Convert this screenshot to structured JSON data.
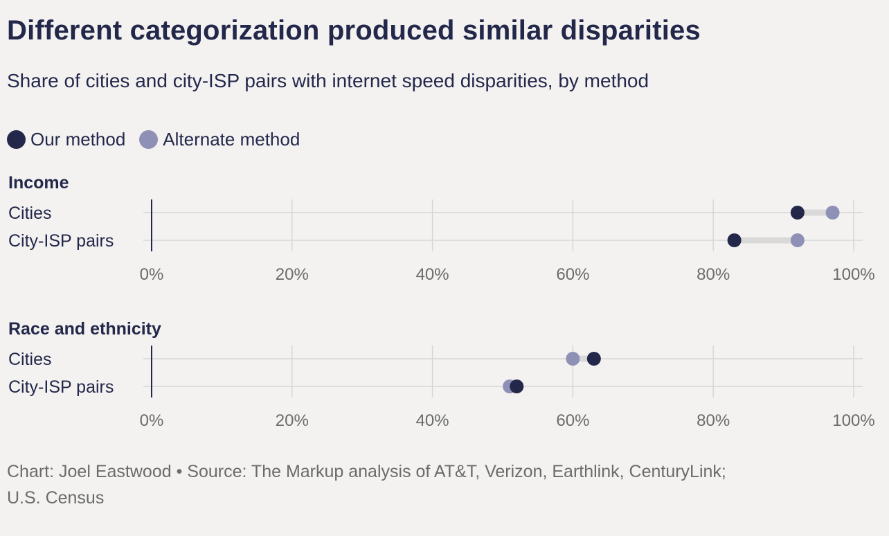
{
  "title": "Different categorization produced similar disparities",
  "subtitle": "Share of cities and city-ISP pairs with internet speed disparities, by method",
  "legend": [
    {
      "label": "Our method",
      "color": "#23284a"
    },
    {
      "label": "Alternate method",
      "color": "#8e90b6"
    }
  ],
  "colors": {
    "our": "#23284a",
    "alternate": "#8e90b6",
    "connector": "#d9d9d9",
    "grid": "#d6d6d6",
    "axis": "#23284a"
  },
  "footer": {
    "line1": "Chart: Joel Eastwood • Source: The Markup analysis of AT&T, Verizon, Earthlink, CenturyLink;",
    "line2": "U.S. Census"
  },
  "chart_data": [
    {
      "type": "dot",
      "title": "Income",
      "categories": [
        "Cities",
        "City-ISP pairs"
      ],
      "series": [
        {
          "name": "Our method",
          "values": [
            92,
            83
          ]
        },
        {
          "name": "Alternate method",
          "values": [
            97,
            92
          ]
        }
      ],
      "xlim": [
        0,
        100
      ],
      "xticks": [
        "0%",
        "20%",
        "40%",
        "60%",
        "80%",
        "100%"
      ],
      "grid": true,
      "legend": "top-left"
    },
    {
      "type": "dot",
      "title": "Race and ethnicity",
      "categories": [
        "Cities",
        "City-ISP pairs"
      ],
      "series": [
        {
          "name": "Our method",
          "values": [
            63,
            52
          ]
        },
        {
          "name": "Alternate method",
          "values": [
            60,
            51
          ]
        }
      ],
      "xlim": [
        0,
        100
      ],
      "xticks": [
        "0%",
        "20%",
        "40%",
        "60%",
        "80%",
        "100%"
      ],
      "grid": true,
      "legend": "top-left"
    }
  ]
}
